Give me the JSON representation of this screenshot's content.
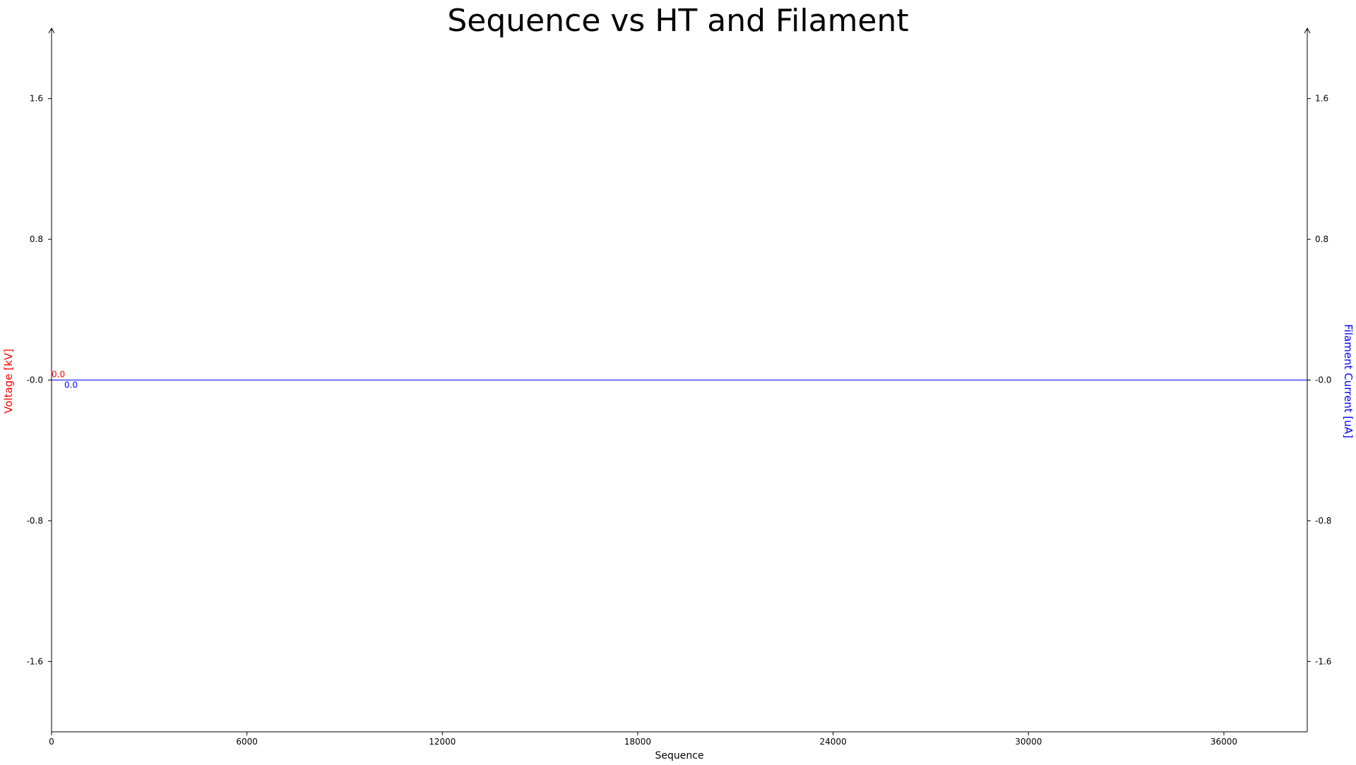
{
  "chart_data": {
    "type": "line",
    "title": "Sequence vs HT and Filament",
    "xlabel": "Sequence",
    "ylabel_left": "Voltage [kV]",
    "ylabel_right": "Filament Current [uA]",
    "xlim": [
      0,
      38560
    ],
    "ylim_left": [
      -2.0,
      2.0
    ],
    "ylim_right": [
      -2.0,
      2.0
    ],
    "x_ticks": [
      0,
      6000,
      12000,
      18000,
      24000,
      30000,
      36000
    ],
    "x_tick_labels": [
      "0",
      "6000",
      "12000",
      "18000",
      "24000",
      "30000",
      "36000"
    ],
    "y_ticks": [
      1.6,
      0.8,
      0.0,
      -0.8,
      -1.6
    ],
    "y_tick_labels_left": [
      "1.6",
      "0.8",
      "-0.0",
      "-0.8",
      "-1.6"
    ],
    "y_tick_labels_right": [
      "1.6",
      "0.8",
      "-0.0",
      "-0.8",
      "-1.6"
    ],
    "grid": false,
    "series": [
      {
        "name": "Voltage [kV]",
        "axis": "left",
        "color": "#ff0000",
        "x": [
          0
        ],
        "values": [
          0.0
        ],
        "start_label": "0.0"
      },
      {
        "name": "Filament Current [uA]",
        "axis": "right",
        "color": "#0000ff",
        "x": [
          0,
          38560
        ],
        "values": [
          0.0,
          0.0
        ],
        "start_label": "0.0"
      }
    ]
  }
}
